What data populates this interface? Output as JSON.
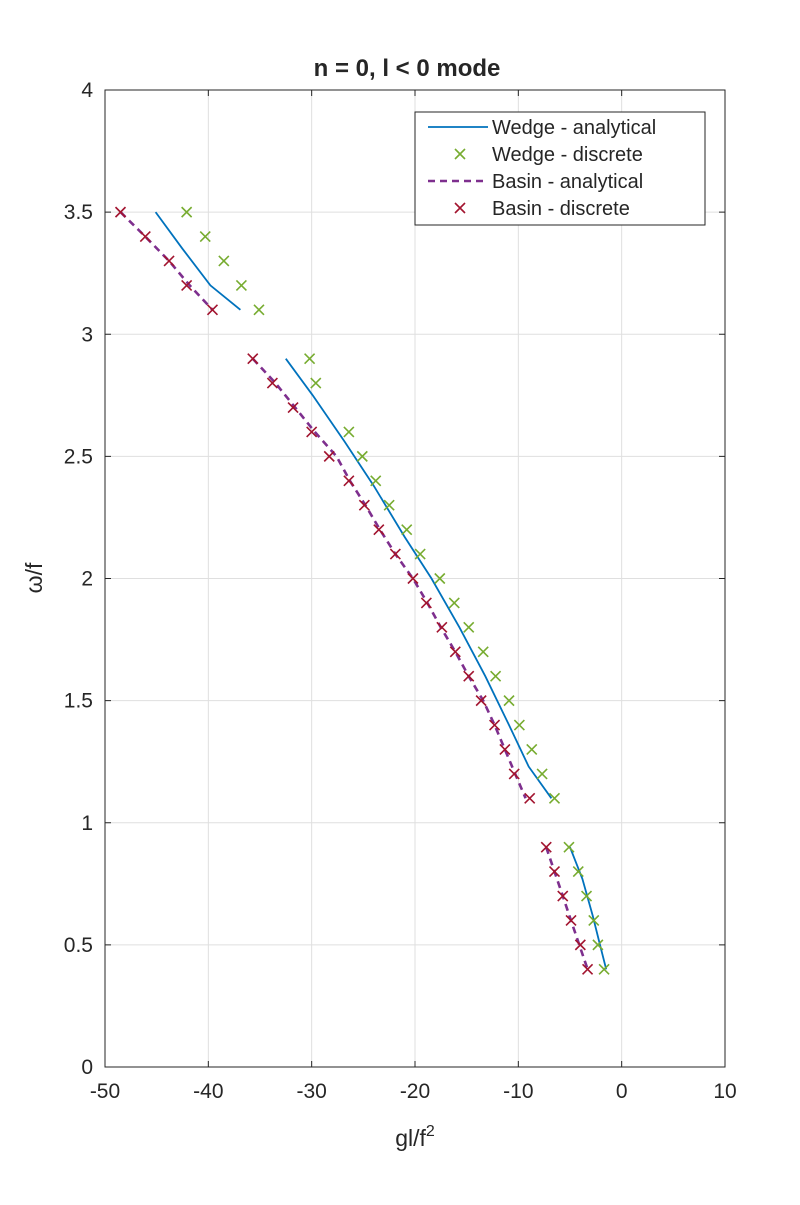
{
  "chart_data": {
    "type": "line",
    "title": "n = 0, l < 0 mode",
    "xlabel": "gl/f",
    "xlabel_sup": "2",
    "ylabel": "ω/f",
    "xlim": [
      -50,
      10
    ],
    "ylim": [
      0,
      4
    ],
    "xticks": [
      -50,
      -40,
      -30,
      -20,
      -10,
      0,
      10
    ],
    "yticks": [
      0,
      0.5,
      1,
      1.5,
      2,
      2.5,
      3,
      3.5,
      4
    ],
    "xtick_labels": [
      "-50",
      "-40",
      "-30",
      "-20",
      "-10",
      "0",
      "10"
    ],
    "ytick_labels": [
      "0",
      "0.5",
      "1",
      "1.5",
      "2",
      "2.5",
      "3",
      "3.5",
      "4"
    ],
    "grid": true,
    "legend_position": "top-right",
    "series": [
      {
        "name": "Wedge - analytical",
        "style": "solid-line",
        "color": "#0072BD",
        "segments": [
          [
            [
              -45.1,
              3.5
            ],
            [
              -42.5,
              3.35
            ],
            [
              -39.8,
              3.2
            ],
            [
              -36.9,
              3.1
            ]
          ],
          [
            [
              -32.5,
              2.9
            ],
            [
              -29.9,
              2.75
            ],
            [
              -26.8,
              2.56
            ],
            [
              -24.0,
              2.38
            ],
            [
              -21.0,
              2.17
            ],
            [
              -18.4,
              2.0
            ],
            [
              -15.7,
              1.8
            ],
            [
              -13.2,
              1.6
            ],
            [
              -10.9,
              1.4
            ],
            [
              -9.0,
              1.23
            ],
            [
              -6.8,
              1.1
            ]
          ],
          [
            [
              -5.0,
              0.9
            ],
            [
              -3.8,
              0.77
            ],
            [
              -2.8,
              0.62
            ],
            [
              -2.1,
              0.5
            ],
            [
              -1.5,
              0.4
            ]
          ]
        ]
      },
      {
        "name": "Wedge - discrete",
        "style": "x-marker",
        "color": "#77AC30",
        "points": [
          [
            -42.1,
            3.5
          ],
          [
            -40.3,
            3.4
          ],
          [
            -38.5,
            3.3
          ],
          [
            -36.8,
            3.2
          ],
          [
            -35.1,
            3.1
          ],
          [
            -30.2,
            2.9
          ],
          [
            -29.6,
            2.8
          ],
          [
            -26.4,
            2.6
          ],
          [
            -25.1,
            2.5
          ],
          [
            -23.8,
            2.4
          ],
          [
            -22.5,
            2.3
          ],
          [
            -20.8,
            2.2
          ],
          [
            -19.5,
            2.1
          ],
          [
            -17.6,
            2.0
          ],
          [
            -16.2,
            1.9
          ],
          [
            -14.8,
            1.8
          ],
          [
            -13.4,
            1.7
          ],
          [
            -12.2,
            1.6
          ],
          [
            -10.9,
            1.5
          ],
          [
            -9.9,
            1.4
          ],
          [
            -8.7,
            1.3
          ],
          [
            -7.7,
            1.2
          ],
          [
            -6.5,
            1.1
          ],
          [
            -5.1,
            0.9
          ],
          [
            -4.2,
            0.8
          ],
          [
            -3.4,
            0.7
          ],
          [
            -2.7,
            0.6
          ],
          [
            -2.3,
            0.5
          ],
          [
            -1.7,
            0.4
          ]
        ]
      },
      {
        "name": "Basin - analytical",
        "style": "dashed-line",
        "color": "#7E2F8E",
        "segments": [
          [
            [
              -48.5,
              3.5
            ],
            [
              -46.1,
              3.4
            ],
            [
              -43.8,
              3.3
            ],
            [
              -41.8,
              3.2
            ],
            [
              -39.6,
              3.1
            ]
          ],
          [
            [
              -35.7,
              2.9
            ],
            [
              -33.5,
              2.8
            ],
            [
              -31.6,
              2.7
            ],
            [
              -29.7,
              2.6
            ],
            [
              -27.6,
              2.5
            ],
            [
              -26.3,
              2.4
            ],
            [
              -24.8,
              2.3
            ],
            [
              -23.4,
              2.2
            ],
            [
              -21.9,
              2.1
            ],
            [
              -20.2,
              2.0
            ],
            [
              -18.8,
              1.9
            ],
            [
              -17.5,
              1.8
            ],
            [
              -16.1,
              1.7
            ],
            [
              -14.8,
              1.6
            ],
            [
              -13.4,
              1.5
            ],
            [
              -12.3,
              1.4
            ],
            [
              -11.3,
              1.3
            ],
            [
              -10.3,
              1.2
            ],
            [
              -9.3,
              1.1
            ]
          ],
          [
            [
              -7.3,
              0.9
            ],
            [
              -6.5,
              0.8
            ],
            [
              -5.7,
              0.7
            ],
            [
              -4.9,
              0.6
            ],
            [
              -4.1,
              0.5
            ],
            [
              -3.3,
              0.4
            ]
          ]
        ]
      },
      {
        "name": "Basin - discrete",
        "style": "x-marker",
        "color": "#A2142F",
        "points": [
          [
            -48.5,
            3.5
          ],
          [
            -46.1,
            3.4
          ],
          [
            -43.8,
            3.3
          ],
          [
            -42.1,
            3.2
          ],
          [
            -39.6,
            3.1
          ],
          [
            -35.7,
            2.9
          ],
          [
            -33.8,
            2.8
          ],
          [
            -31.8,
            2.7
          ],
          [
            -30.0,
            2.6
          ],
          [
            -28.3,
            2.5
          ],
          [
            -26.4,
            2.4
          ],
          [
            -24.9,
            2.3
          ],
          [
            -23.5,
            2.2
          ],
          [
            -21.9,
            2.1
          ],
          [
            -20.2,
            2.0
          ],
          [
            -18.9,
            1.9
          ],
          [
            -17.4,
            1.8
          ],
          [
            -16.1,
            1.7
          ],
          [
            -14.8,
            1.6
          ],
          [
            -13.6,
            1.5
          ],
          [
            -12.3,
            1.4
          ],
          [
            -11.3,
            1.3
          ],
          [
            -10.4,
            1.2
          ],
          [
            -8.9,
            1.1
          ],
          [
            -7.3,
            0.9
          ],
          [
            -6.5,
            0.8
          ],
          [
            -5.7,
            0.7
          ],
          [
            -4.9,
            0.6
          ],
          [
            -4.0,
            0.5
          ],
          [
            -3.3,
            0.4
          ]
        ]
      }
    ]
  }
}
